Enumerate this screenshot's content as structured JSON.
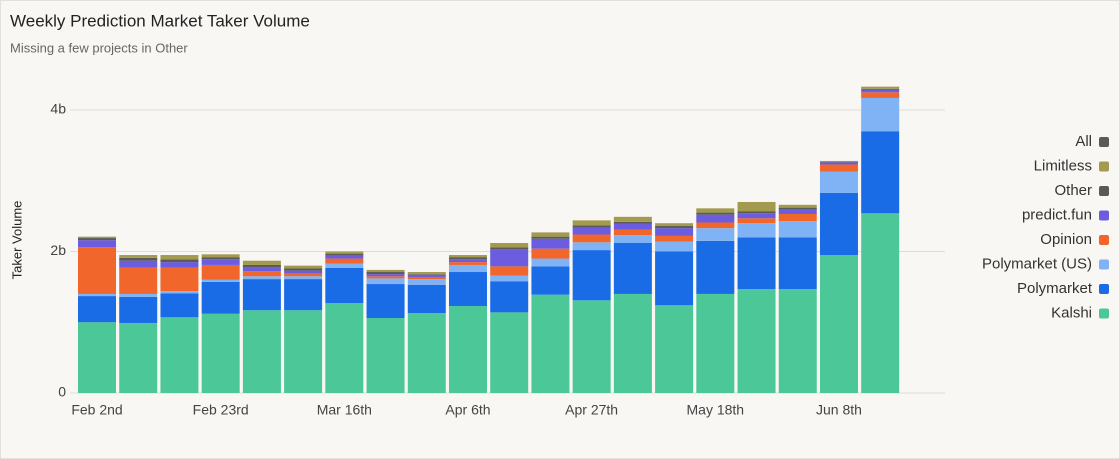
{
  "chart_data": {
    "type": "bar",
    "stacked": true,
    "title": "Weekly Prediction Market Taker Volume",
    "subtitle": "Missing a few projects in Other",
    "y_label": "Taker Volume",
    "categories": [
      "Feb 2nd",
      null,
      null,
      "Feb 23rd",
      null,
      null,
      "Mar 16th",
      null,
      null,
      "Apr 6th",
      null,
      null,
      "Apr 27th",
      null,
      null,
      "May 18th",
      null,
      null,
      "Jun 8th",
      null
    ],
    "series": [
      {
        "name": "Kalshi",
        "color": "#4cc797",
        "values": [
          1.0,
          0.99,
          1.07,
          1.12,
          1.17,
          1.17,
          1.27,
          1.06,
          1.13,
          1.23,
          1.14,
          1.39,
          1.31,
          1.4,
          1.24,
          1.4,
          1.47,
          1.47,
          1.95,
          2.54
        ]
      },
      {
        "name": "Polymarket",
        "color": "#1a6be6",
        "values": [
          0.37,
          0.37,
          0.34,
          0.45,
          0.44,
          0.44,
          0.5,
          0.48,
          0.4,
          0.48,
          0.44,
          0.4,
          0.71,
          0.72,
          0.76,
          0.75,
          0.73,
          0.73,
          0.88,
          1.16
        ]
      },
      {
        "name": "Polymarket (US)",
        "color": "#80b3f5",
        "values": [
          0.03,
          0.04,
          0.03,
          0.03,
          0.04,
          0.04,
          0.06,
          0.08,
          0.08,
          0.1,
          0.08,
          0.11,
          0.11,
          0.11,
          0.14,
          0.18,
          0.2,
          0.23,
          0.3,
          0.47
        ]
      },
      {
        "name": "Opinion",
        "color": "#f1662b",
        "values": [
          0.66,
          0.37,
          0.33,
          0.21,
          0.07,
          0.04,
          0.07,
          0.03,
          0.03,
          0.04,
          0.13,
          0.14,
          0.11,
          0.08,
          0.08,
          0.08,
          0.07,
          0.1,
          0.1,
          0.08
        ]
      },
      {
        "name": "predict.fun",
        "color": "#6b5ce0",
        "values": [
          0.1,
          0.1,
          0.08,
          0.08,
          0.06,
          0.04,
          0.04,
          0.03,
          0.03,
          0.04,
          0.24,
          0.14,
          0.1,
          0.08,
          0.11,
          0.11,
          0.07,
          0.06,
          0.03,
          0.04
        ]
      },
      {
        "name": "Other",
        "color": "#5a5a5a",
        "values": [
          0.03,
          0.04,
          0.04,
          0.03,
          0.03,
          0.03,
          0.03,
          0.03,
          0.01,
          0.03,
          0.03,
          0.03,
          0.03,
          0.03,
          0.03,
          0.03,
          0.03,
          0.03,
          0.01,
          0.01
        ]
      },
      {
        "name": "Limitless",
        "color": "#a39a4f",
        "values": [
          0.02,
          0.04,
          0.06,
          0.04,
          0.06,
          0.04,
          0.03,
          0.03,
          0.03,
          0.03,
          0.06,
          0.06,
          0.07,
          0.07,
          0.04,
          0.06,
          0.13,
          0.04,
          0.01,
          0.03
        ]
      }
    ],
    "total_legend": {
      "name": "All",
      "color": "#5a5a5a"
    },
    "ylim": [
      0,
      4.4
    ],
    "yticks": [
      0,
      {
        "value": 2,
        "label": "2b"
      },
      {
        "value": 4,
        "label": "4b"
      }
    ],
    "grid": true,
    "legend_position": "right"
  }
}
